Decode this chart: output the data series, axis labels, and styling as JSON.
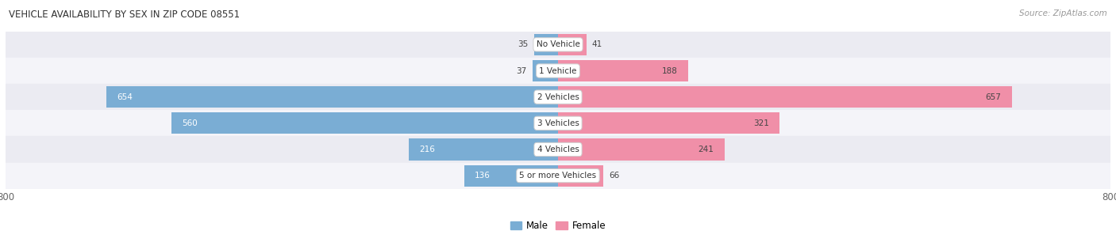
{
  "title": "VEHICLE AVAILABILITY BY SEX IN ZIP CODE 08551",
  "source": "Source: ZipAtlas.com",
  "categories": [
    "No Vehicle",
    "1 Vehicle",
    "2 Vehicles",
    "3 Vehicles",
    "4 Vehicles",
    "5 or more Vehicles"
  ],
  "male_values": [
    35,
    37,
    654,
    560,
    216,
    136
  ],
  "female_values": [
    41,
    188,
    657,
    321,
    241,
    66
  ],
  "male_color": "#7aadd4",
  "female_color": "#f08fa8",
  "xlim": 800,
  "bar_height": 0.82,
  "row_bg_even": "#ebebf2",
  "row_bg_odd": "#f4f4f9",
  "axis_label_color": "#666666",
  "title_color": "#333333",
  "source_color": "#999999",
  "fig_bg_color": "#ffffff"
}
